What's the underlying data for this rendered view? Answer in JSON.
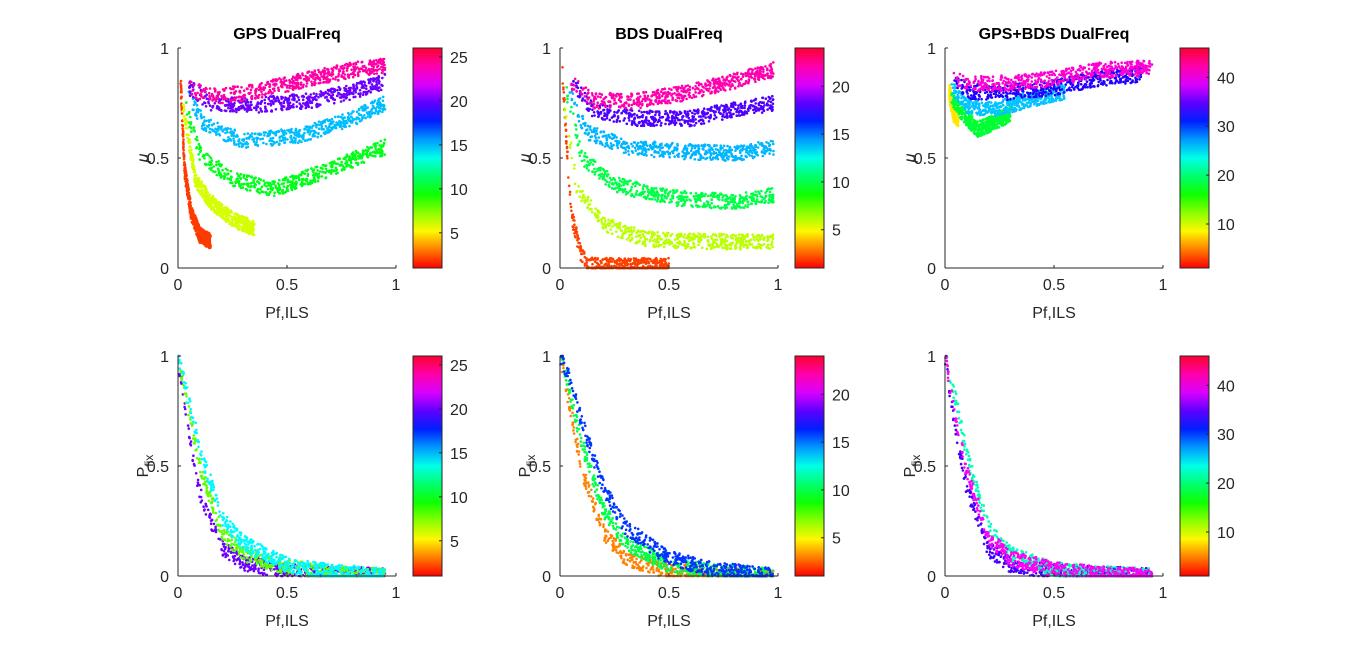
{
  "figure": {
    "panels": [
      {
        "id": "r1c1",
        "title": "GPS DualFreq",
        "xlabel": "Pf,ILS",
        "ylabel": "μ",
        "cmax": 26
      },
      {
        "id": "r1c2",
        "title": "BDS DualFreq",
        "xlabel": "Pf,ILS",
        "ylabel": "μ",
        "cmax": 24
      },
      {
        "id": "r1c3",
        "title": "GPS+BDS DualFreq",
        "xlabel": "Pf,ILS",
        "ylabel": "μ",
        "cmax": 46
      },
      {
        "id": "r2c1",
        "title": "",
        "xlabel": "Pf,ILS",
        "ylabel": "P",
        "ylabel_sub": "fix",
        "cmax": 26
      },
      {
        "id": "r2c2",
        "title": "",
        "xlabel": "Pf,ILS",
        "ylabel": "P",
        "ylabel_sub": "fix",
        "cmax": 24
      },
      {
        "id": "r2c3",
        "title": "",
        "xlabel": "Pf,ILS",
        "ylabel": "P",
        "ylabel_sub": "fix",
        "cmax": 46
      }
    ]
  },
  "chart_data": [
    {
      "type": "scatter",
      "title": "GPS DualFreq",
      "xlabel": "Pf,ILS",
      "ylabel": "μ",
      "xlim": [
        0,
        1
      ],
      "ylim": [
        0,
        1
      ],
      "xticks": [
        "0",
        "0.5",
        "1"
      ],
      "yticks": [
        "0",
        "0.5",
        "1"
      ],
      "colorbar": {
        "range": [
          1,
          26
        ],
        "ticks": [
          "5",
          "10",
          "15",
          "20",
          "25"
        ],
        "colormap": "hsv"
      },
      "series": [
        {
          "color_value": 2,
          "x": [
            0.01,
            0.03,
            0.06,
            0.1,
            0.15
          ],
          "y": [
            0.9,
            0.45,
            0.25,
            0.15,
            0.12
          ]
        },
        {
          "color_value": 6,
          "x": [
            0.02,
            0.08,
            0.15,
            0.25,
            0.35
          ],
          "y": [
            0.75,
            0.4,
            0.3,
            0.22,
            0.18
          ]
        },
        {
          "color_value": 10,
          "x": [
            0.03,
            0.1,
            0.25,
            0.45,
            0.7,
            0.95
          ],
          "y": [
            0.75,
            0.52,
            0.4,
            0.36,
            0.45,
            0.55
          ]
        },
        {
          "color_value": 15,
          "x": [
            0.04,
            0.12,
            0.3,
            0.55,
            0.8,
            0.95
          ],
          "y": [
            0.8,
            0.65,
            0.58,
            0.6,
            0.68,
            0.75
          ]
        },
        {
          "color_value": 20,
          "x": [
            0.05,
            0.15,
            0.35,
            0.6,
            0.8,
            0.95
          ],
          "y": [
            0.82,
            0.75,
            0.74,
            0.76,
            0.8,
            0.85
          ]
        },
        {
          "color_value": 24,
          "x": [
            0.05,
            0.15,
            0.35,
            0.6,
            0.8,
            0.95
          ],
          "y": [
            0.82,
            0.78,
            0.8,
            0.86,
            0.9,
            0.92
          ]
        }
      ]
    },
    {
      "type": "scatter",
      "title": "BDS DualFreq",
      "xlabel": "Pf,ILS",
      "ylabel": "μ",
      "xlim": [
        0,
        1
      ],
      "ylim": [
        0,
        1
      ],
      "xticks": [
        "0",
        "0.5",
        "1"
      ],
      "yticks": [
        "0",
        "0.5",
        "1"
      ],
      "colorbar": {
        "range": [
          1,
          24
        ],
        "ticks": [
          "5",
          "10",
          "15",
          "20"
        ],
        "colormap": "hsv"
      },
      "series": [
        {
          "color_value": 2,
          "x": [
            0.01,
            0.05,
            0.1,
            0.15,
            0.3,
            0.5
          ],
          "y": [
            0.9,
            0.25,
            0.05,
            0.01,
            0.01,
            0.01
          ]
        },
        {
          "color_value": 6,
          "x": [
            0.02,
            0.08,
            0.2,
            0.4,
            0.7,
            0.98
          ],
          "y": [
            0.75,
            0.35,
            0.2,
            0.13,
            0.12,
            0.12
          ]
        },
        {
          "color_value": 10,
          "x": [
            0.03,
            0.1,
            0.25,
            0.5,
            0.8,
            0.98
          ],
          "y": [
            0.8,
            0.5,
            0.38,
            0.32,
            0.3,
            0.33
          ]
        },
        {
          "color_value": 14,
          "x": [
            0.04,
            0.12,
            0.3,
            0.55,
            0.8,
            0.98
          ],
          "y": [
            0.82,
            0.62,
            0.55,
            0.53,
            0.52,
            0.55
          ]
        },
        {
          "color_value": 18,
          "x": [
            0.05,
            0.15,
            0.35,
            0.6,
            0.8,
            0.98
          ],
          "y": [
            0.85,
            0.72,
            0.68,
            0.68,
            0.72,
            0.75
          ]
        },
        {
          "color_value": 22,
          "x": [
            0.05,
            0.15,
            0.35,
            0.6,
            0.8,
            0.98
          ],
          "y": [
            0.85,
            0.76,
            0.76,
            0.8,
            0.85,
            0.9
          ]
        }
      ]
    },
    {
      "type": "scatter",
      "title": "GPS+BDS DualFreq",
      "xlabel": "Pf,ILS",
      "ylabel": "μ",
      "xlim": [
        0,
        1
      ],
      "ylim": [
        0,
        1
      ],
      "xticks": [
        "0",
        "0.5",
        "1"
      ],
      "yticks": [
        "0",
        "0.5",
        "1"
      ],
      "colorbar": {
        "range": [
          1,
          46
        ],
        "ticks": [
          "10",
          "20",
          "30",
          "40"
        ],
        "colormap": "hsv"
      },
      "series": [
        {
          "color_value": 8,
          "x": [
            0.02,
            0.04,
            0.06
          ],
          "y": [
            0.8,
            0.7,
            0.68
          ]
        },
        {
          "color_value": 18,
          "x": [
            0.03,
            0.08,
            0.15,
            0.22,
            0.3
          ],
          "y": [
            0.78,
            0.7,
            0.63,
            0.66,
            0.7
          ]
        },
        {
          "color_value": 26,
          "x": [
            0.03,
            0.1,
            0.2,
            0.3,
            0.45,
            0.55
          ],
          "y": [
            0.82,
            0.74,
            0.72,
            0.74,
            0.78,
            0.8
          ]
        },
        {
          "color_value": 33,
          "x": [
            0.04,
            0.12,
            0.3,
            0.5,
            0.7,
            0.9
          ],
          "y": [
            0.84,
            0.8,
            0.8,
            0.82,
            0.86,
            0.88
          ]
        },
        {
          "color_value": 41,
          "x": [
            0.04,
            0.12,
            0.3,
            0.5,
            0.7,
            0.95
          ],
          "y": [
            0.86,
            0.84,
            0.84,
            0.86,
            0.9,
            0.91
          ]
        }
      ]
    },
    {
      "type": "scatter",
      "title": "",
      "xlabel": "Pf,ILS",
      "ylabel": "Pfix",
      "xlim": [
        0,
        1
      ],
      "ylim": [
        0,
        1
      ],
      "xticks": [
        "0",
        "0.5",
        "1"
      ],
      "yticks": [
        "0",
        "0.5",
        "1"
      ],
      "colorbar": {
        "range": [
          1,
          26
        ],
        "ticks": [
          "5",
          "10",
          "15",
          "20",
          "25"
        ],
        "colormap": "hsv"
      },
      "series": [
        {
          "color_value": 20,
          "x": [
            0.0,
            0.05,
            0.1,
            0.2,
            0.3,
            0.5,
            0.7,
            0.95
          ],
          "y": [
            1.0,
            0.65,
            0.38,
            0.13,
            0.06,
            0.02,
            0.01,
            0.0
          ]
        },
        {
          "color_value": 8,
          "x": [
            0.0,
            0.05,
            0.1,
            0.2,
            0.3,
            0.5,
            0.7,
            0.95
          ],
          "y": [
            1.0,
            0.75,
            0.5,
            0.2,
            0.1,
            0.04,
            0.01,
            0.0
          ]
        },
        {
          "color_value": 14,
          "x": [
            0.0,
            0.05,
            0.1,
            0.2,
            0.3,
            0.5,
            0.7,
            0.95
          ],
          "y": [
            1.0,
            0.8,
            0.58,
            0.27,
            0.15,
            0.05,
            0.02,
            0.0
          ]
        }
      ]
    },
    {
      "type": "scatter",
      "title": "",
      "xlabel": "Pf,ILS",
      "ylabel": "Pfix",
      "xlim": [
        0,
        1
      ],
      "ylim": [
        0,
        1
      ],
      "xticks": [
        "0",
        "0.5",
        "1"
      ],
      "yticks": [
        "0",
        "0.5",
        "1"
      ],
      "colorbar": {
        "range": [
          1,
          24
        ],
        "ticks": [
          "5",
          "10",
          "15",
          "20"
        ],
        "colormap": "hsv"
      },
      "series": [
        {
          "color_value": 3,
          "x": [
            0.0,
            0.05,
            0.1,
            0.2,
            0.3,
            0.5,
            0.7,
            0.98
          ],
          "y": [
            1.0,
            0.75,
            0.48,
            0.2,
            0.08,
            0.02,
            0.01,
            0.0
          ]
        },
        {
          "color_value": 10,
          "x": [
            0.0,
            0.05,
            0.1,
            0.2,
            0.3,
            0.5,
            0.7,
            0.98
          ],
          "y": [
            1.0,
            0.82,
            0.6,
            0.3,
            0.15,
            0.05,
            0.02,
            0.0
          ]
        },
        {
          "color_value": 16,
          "x": [
            0.0,
            0.05,
            0.1,
            0.2,
            0.3,
            0.5,
            0.7,
            0.98
          ],
          "y": [
            1.0,
            0.88,
            0.7,
            0.4,
            0.22,
            0.08,
            0.03,
            0.0
          ]
        }
      ]
    },
    {
      "type": "scatter",
      "title": "",
      "xlabel": "Pf,ILS",
      "ylabel": "Pfix",
      "xlim": [
        0,
        1
      ],
      "ylim": [
        0,
        1
      ],
      "xticks": [
        "0",
        "0.5",
        "1"
      ],
      "yticks": [
        "0",
        "0.5",
        "1"
      ],
      "colorbar": {
        "range": [
          1,
          46
        ],
        "ticks": [
          "10",
          "20",
          "30",
          "40"
        ],
        "colormap": "hsv"
      },
      "series": [
        {
          "color_value": 34,
          "x": [
            0.0,
            0.05,
            0.1,
            0.2,
            0.3,
            0.5,
            0.7,
            0.95
          ],
          "y": [
            1.0,
            0.65,
            0.4,
            0.12,
            0.05,
            0.02,
            0.01,
            0.0
          ]
        },
        {
          "color_value": 22,
          "x": [
            0.0,
            0.05,
            0.1,
            0.2,
            0.3,
            0.5,
            0.7,
            0.95
          ],
          "y": [
            1.0,
            0.8,
            0.55,
            0.22,
            0.1,
            0.03,
            0.01,
            0.0
          ]
        },
        {
          "color_value": 40,
          "x": [
            0.0,
            0.05,
            0.1,
            0.2,
            0.3,
            0.5,
            0.7,
            0.95
          ],
          "y": [
            1.0,
            0.72,
            0.47,
            0.18,
            0.08,
            0.03,
            0.01,
            0.0
          ]
        }
      ]
    }
  ]
}
